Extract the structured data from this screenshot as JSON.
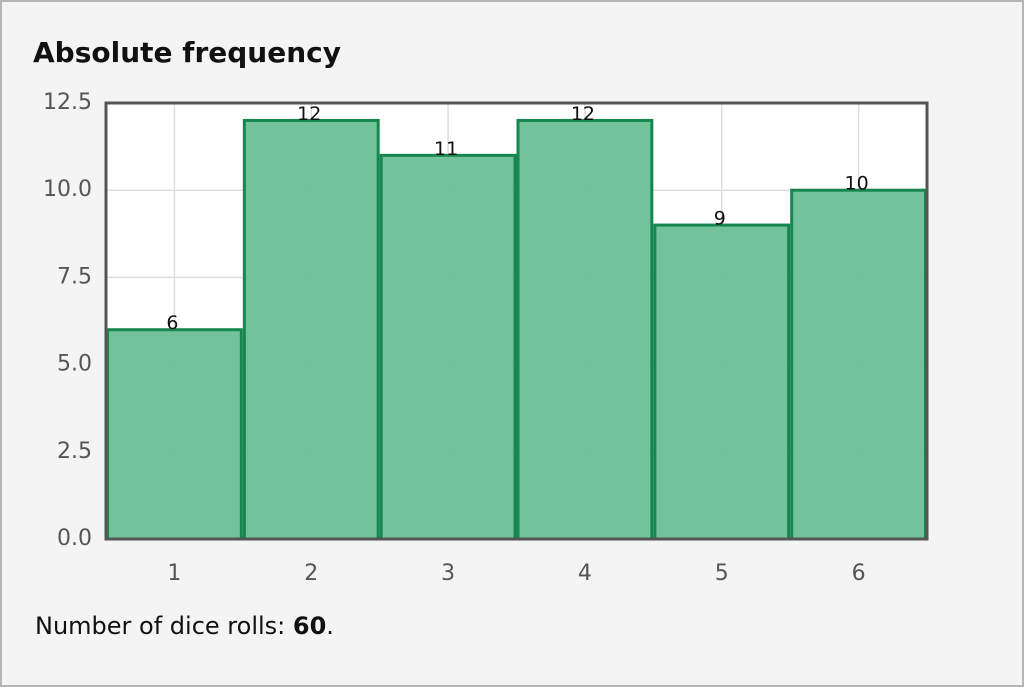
{
  "chart_data": {
    "type": "bar",
    "title": "Absolute frequency",
    "categories": [
      "1",
      "2",
      "3",
      "4",
      "5",
      "6"
    ],
    "values": [
      6,
      12,
      11,
      12,
      9,
      10
    ],
    "color": "#6abf96",
    "edge_color": "#17864f",
    "ylim": [
      0,
      12.5
    ],
    "yticks": [
      {
        "value": 0,
        "label": "0.0"
      },
      2.5,
      {
        "value": 5,
        "label": "5.0"
      },
      7.5,
      {
        "value": 10,
        "label": "10.0"
      },
      12.5
    ],
    "grid": true
  },
  "footer": {
    "label": "Number of dice rolls:",
    "count": 60,
    "suffix": "."
  }
}
